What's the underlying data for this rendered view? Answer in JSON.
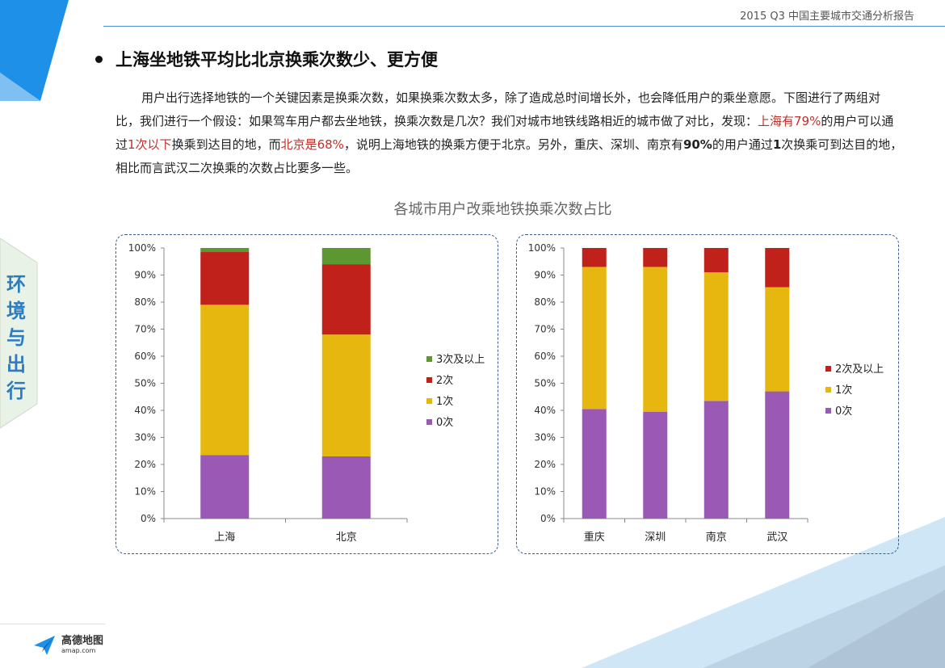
{
  "header": {
    "report_title": "2015 Q3 中国主要城市交通分析报告"
  },
  "section": {
    "title": "上海坐地铁平均比北京换乘次数少、更方便",
    "para_1": "用户出行选择地铁的一个关键因素是换乘次数，如果换乘次数太多，除了造成总时间增长外，也会降低用户的乘坐意愿。下图进行了两组对比，我们进行一个假设：如果驾车用户都去坐地铁，换乘次数是几次？我们对城市地铁线路相近的城市做了对比，发现：",
    "hl_1": "上海有79%",
    "seg_2": "的用户可以通过",
    "hl_2": "1次以下",
    "seg_3": "换乘到达目的地，而",
    "hl_3": "北京是68%",
    "seg_4": "，说明上海地铁的换乘方便于北京。另外，重庆、深圳、南京有",
    "bold_1": "90%",
    "seg_5": "的用户通过",
    "bold_2": "1",
    "seg_6": "次换乘可到达目的地，相比而言武汉二次换乘的次数占比要多一些。"
  },
  "side_tab": {
    "chars": [
      "环",
      "境",
      "与",
      "出",
      "行"
    ]
  },
  "logo": {
    "name": "高德地图",
    "url": "amap.com"
  },
  "colors": {
    "c0": "#9b59b6",
    "c1": "#e6b80f",
    "c2": "#c0211a",
    "c3": "#5d9732",
    "accent": "#2e7cc0",
    "highlight": "#c0302a"
  },
  "chart_data": {
    "title": "各城市用户改乘地铁换乘次数占比",
    "charts": [
      {
        "type": "bar",
        "stacked": true,
        "categories": [
          "上海",
          "北京"
        ],
        "series": [
          {
            "name": "0次",
            "values": [
              23.5,
              23
            ]
          },
          {
            "name": "1次",
            "values": [
              55.5,
              45
            ]
          },
          {
            "name": "2次",
            "values": [
              19.5,
              26
            ]
          },
          {
            "name": "3次及以上",
            "values": [
              1.5,
              6
            ]
          }
        ],
        "ylim": [
          0,
          100
        ],
        "yticks": [
          "0%",
          "10%",
          "20%",
          "30%",
          "40%",
          "50%",
          "60%",
          "70%",
          "80%",
          "90%",
          "100%"
        ],
        "legend": [
          "3次及以上",
          "2次",
          "1次",
          "0次"
        ],
        "legend_position": "right"
      },
      {
        "type": "bar",
        "stacked": true,
        "categories": [
          "重庆",
          "深圳",
          "南京",
          "武汉"
        ],
        "series": [
          {
            "name": "0次",
            "values": [
              40.5,
              39.5,
              43.5,
              47
            ]
          },
          {
            "name": "1次",
            "values": [
              52.5,
              53.5,
              47.5,
              38.5
            ]
          },
          {
            "name": "2次及以上",
            "values": [
              7,
              7,
              9,
              14.5
            ]
          }
        ],
        "ylim": [
          0,
          100
        ],
        "yticks": [
          "0%",
          "10%",
          "20%",
          "30%",
          "40%",
          "50%",
          "60%",
          "70%",
          "80%",
          "90%",
          "100%"
        ],
        "legend": [
          "2次及以上",
          "1次",
          "0次"
        ],
        "legend_position": "right"
      }
    ]
  }
}
